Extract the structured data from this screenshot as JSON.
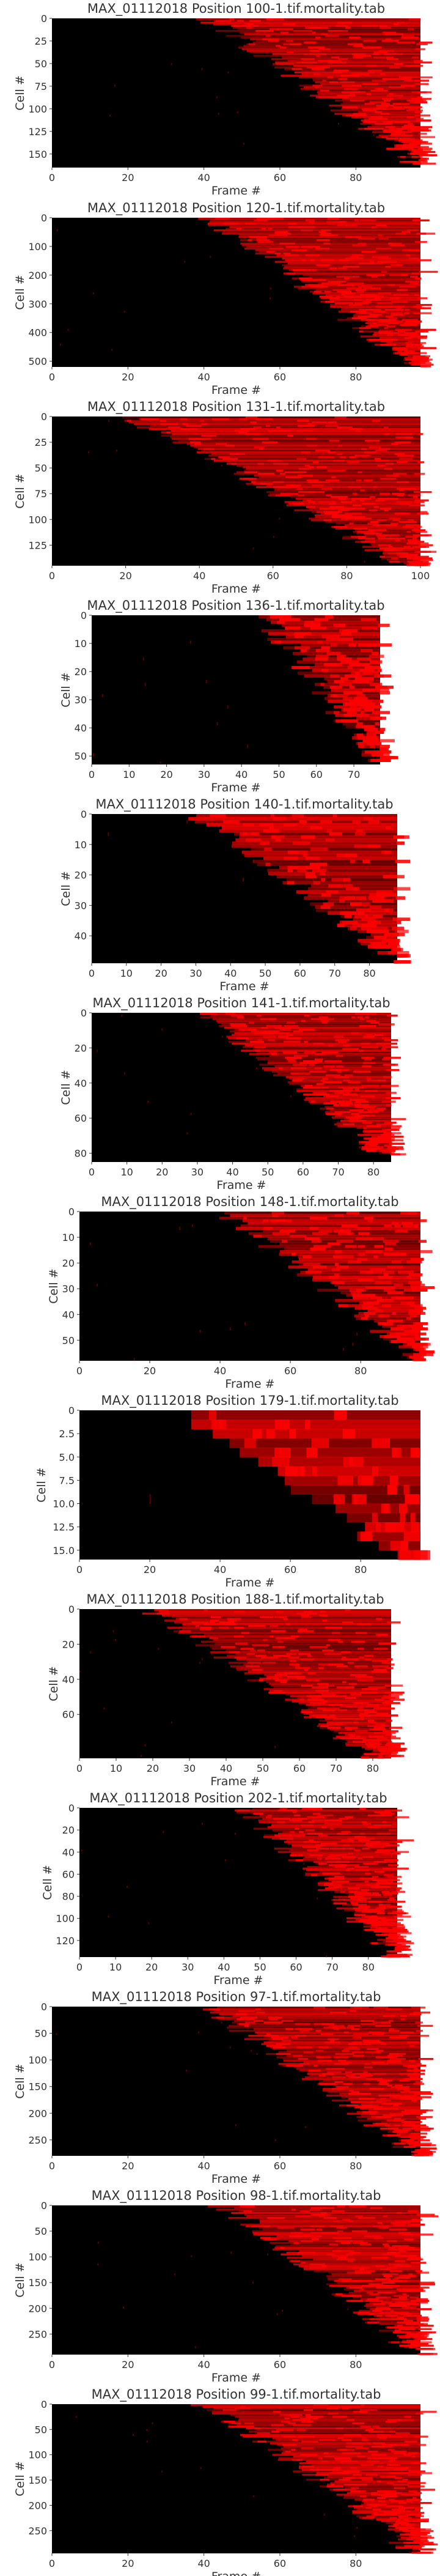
{
  "colors": {
    "background": "#ffffff",
    "heat_low": "#000000",
    "heat_high": "#ff0000",
    "text": "#333333"
  },
  "chart_data": [
    {
      "type": "heatmap",
      "title": "MAX_01112018 Position 100-1.tif.mortality.tab",
      "xlabel": "Frame #",
      "ylabel": "Cell #",
      "x_range": [
        0,
        97
      ],
      "y_range": [
        0,
        165
      ],
      "x_ticks": [
        0,
        20,
        40,
        60,
        80
      ],
      "y_ticks": [
        0,
        25,
        50,
        75,
        100,
        125,
        150
      ],
      "onset_frame_range": [
        40,
        97
      ],
      "colormap": [
        "#000000",
        "#ff0000"
      ]
    },
    {
      "type": "heatmap",
      "title": "MAX_01112018 Position 120-1.tif.mortality.tab",
      "xlabel": "Frame #",
      "ylabel": "Cell #",
      "x_range": [
        0,
        97
      ],
      "y_range": [
        0,
        520
      ],
      "x_ticks": [
        0,
        20,
        40,
        60,
        80
      ],
      "y_ticks": [
        0,
        100,
        200,
        300,
        400,
        500
      ],
      "onset_frame_range": [
        40,
        95
      ],
      "colormap": [
        "#000000",
        "#ff0000"
      ]
    },
    {
      "type": "heatmap",
      "title": "MAX_01112018 Position 131-1.tif.mortality.tab",
      "xlabel": "Frame #",
      "ylabel": "Cell #",
      "x_range": [
        0,
        100
      ],
      "y_range": [
        0,
        145
      ],
      "x_ticks": [
        0,
        20,
        40,
        60,
        80,
        100
      ],
      "y_ticks": [
        0,
        25,
        50,
        75,
        100,
        125
      ],
      "onset_frame_range": [
        20,
        95
      ],
      "colormap": [
        "#000000",
        "#ff0000"
      ]
    },
    {
      "type": "heatmap",
      "title": "MAX_01112018 Position 136-1.tif.mortality.tab",
      "xlabel": "Frame #",
      "ylabel": "Cell #",
      "x_range": [
        0,
        77
      ],
      "y_range": [
        0,
        53
      ],
      "x_ticks": [
        0,
        10,
        20,
        30,
        40,
        50,
        60,
        70
      ],
      "y_ticks": [
        0,
        10,
        20,
        30,
        40,
        50
      ],
      "onset_frame_range": [
        45,
        76
      ],
      "colormap": [
        "#000000",
        "#ff0000"
      ]
    },
    {
      "type": "heatmap",
      "title": "MAX_01112018 Position 140-1.tif.mortality.tab",
      "xlabel": "Frame #",
      "ylabel": "Cell #",
      "x_range": [
        0,
        88
      ],
      "y_range": [
        0,
        49
      ],
      "x_ticks": [
        0,
        10,
        20,
        30,
        40,
        50,
        60,
        70,
        80
      ],
      "y_ticks": [
        0,
        10,
        20,
        30,
        40
      ],
      "onset_frame_range": [
        30,
        87
      ],
      "colormap": [
        "#000000",
        "#ff0000"
      ]
    },
    {
      "type": "heatmap",
      "title": "MAX_01112018 Position 141-1.tif.mortality.tab",
      "xlabel": "Frame #",
      "ylabel": "Cell #",
      "x_range": [
        0,
        85
      ],
      "y_range": [
        0,
        85
      ],
      "x_ticks": [
        0,
        10,
        20,
        30,
        40,
        50,
        60,
        70,
        80
      ],
      "y_ticks": [
        0,
        20,
        40,
        60,
        80
      ],
      "onset_frame_range": [
        30,
        84
      ],
      "colormap": [
        "#000000",
        "#ff0000"
      ]
    },
    {
      "type": "heatmap",
      "title": "MAX_01112018 Position 148-1.tif.mortality.tab",
      "xlabel": "Frame #",
      "ylabel": "Cell #",
      "x_range": [
        0,
        97
      ],
      "y_range": [
        0,
        58
      ],
      "x_ticks": [
        0,
        20,
        40,
        60,
        80
      ],
      "y_ticks": [
        0,
        10,
        20,
        30,
        40,
        50
      ],
      "onset_frame_range": [
        40,
        96
      ],
      "colormap": [
        "#000000",
        "#ff0000"
      ]
    },
    {
      "type": "heatmap",
      "title": "MAX_01112018 Position 179-1.tif.mortality.tab",
      "xlabel": "Frame #",
      "ylabel": "Cell #",
      "x_range": [
        0,
        97
      ],
      "y_range": [
        0,
        16
      ],
      "x_ticks": [
        0,
        20,
        40,
        60,
        80
      ],
      "y_ticks": [
        0,
        2.5,
        5.0,
        7.5,
        10.0,
        12.5,
        15.0
      ],
      "y_tick_labels": [
        "0",
        "2.5",
        "5.0",
        "7.5",
        "10.0",
        "12.5",
        "15.0"
      ],
      "onset_frame_range": [
        30,
        90
      ],
      "colormap": [
        "#000000",
        "#ff0000"
      ]
    },
    {
      "type": "heatmap",
      "title": "MAX_01112018 Position 188-1.tif.mortality.tab",
      "xlabel": "Frame #",
      "ylabel": "Cell #",
      "x_range": [
        0,
        85
      ],
      "y_range": [
        0,
        85
      ],
      "x_ticks": [
        0,
        10,
        20,
        30,
        40,
        50,
        60,
        70,
        80
      ],
      "y_ticks": [
        0,
        20,
        40,
        60
      ],
      "onset_frame_range": [
        18,
        80
      ],
      "colormap": [
        "#000000",
        "#ff0000"
      ]
    },
    {
      "type": "heatmap",
      "title": "MAX_01112018 Position 202-1.tif.mortality.tab",
      "xlabel": "Frame #",
      "ylabel": "Cell #",
      "x_range": [
        0,
        88
      ],
      "y_range": [
        0,
        135
      ],
      "x_ticks": [
        0,
        10,
        20,
        30,
        40,
        50,
        60,
        70,
        80
      ],
      "y_ticks": [
        0,
        20,
        40,
        60,
        80,
        100,
        120
      ],
      "onset_frame_range": [
        45,
        87
      ],
      "colormap": [
        "#000000",
        "#ff0000"
      ]
    },
    {
      "type": "heatmap",
      "title": "MAX_01112018 Position 97-1.tif.mortality.tab",
      "xlabel": "Frame #",
      "ylabel": "Cell #",
      "x_range": [
        0,
        97
      ],
      "y_range": [
        0,
        280
      ],
      "x_ticks": [
        0,
        20,
        40,
        60,
        80
      ],
      "y_ticks": [
        0,
        50,
        100,
        150,
        200,
        250
      ],
      "onset_frame_range": [
        40,
        96
      ],
      "colormap": [
        "#000000",
        "#ff0000"
      ]
    },
    {
      "type": "heatmap",
      "title": "MAX_01112018 Position 98-1.tif.mortality.tab",
      "xlabel": "Frame #",
      "ylabel": "Cell #",
      "x_range": [
        0,
        97
      ],
      "y_range": [
        0,
        290
      ],
      "x_ticks": [
        0,
        20,
        40,
        60,
        80
      ],
      "y_ticks": [
        0,
        50,
        100,
        150,
        200,
        250
      ],
      "onset_frame_range": [
        45,
        96
      ],
      "colormap": [
        "#000000",
        "#ff0000"
      ]
    },
    {
      "type": "heatmap",
      "title": "MAX_01112018 Position 99-1.tif.mortality.tab",
      "xlabel": "Frame #",
      "ylabel": "Cell #",
      "x_range": [
        0,
        97
      ],
      "y_range": [
        0,
        295
      ],
      "x_ticks": [
        0,
        20,
        40,
        60,
        80
      ],
      "y_ticks": [
        0,
        50,
        100,
        150,
        200,
        250
      ],
      "onset_frame_range": [
        40,
        96
      ],
      "colormap": [
        "#000000",
        "#ff0000"
      ]
    }
  ]
}
